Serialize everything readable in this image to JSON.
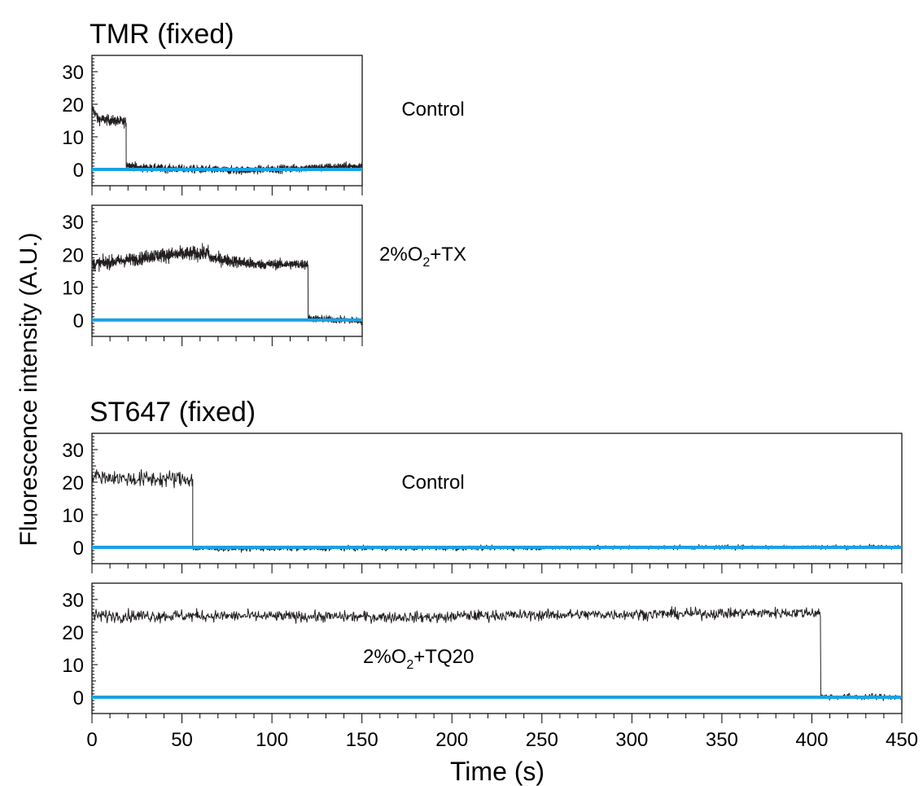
{
  "colors": {
    "trace": "#231f20",
    "baseline": "#1ba1e2",
    "axis": "#000000"
  },
  "figure": {
    "ylabel": "Fluorescence intensity (A.U.)",
    "xlabel": "Time (s)"
  },
  "chart_data": [
    {
      "type": "line",
      "group_title": "TMR (fixed)",
      "annotation": "Control",
      "xlim": [
        0,
        150
      ],
      "ylim": [
        -5,
        35
      ],
      "yticks": [
        0,
        10,
        20,
        30
      ],
      "series": [
        {
          "kind": "trace",
          "segments": [
            {
              "x_start": 0,
              "x_end": 3,
              "y_start": 19,
              "y_end": 16,
              "noise": 1.2
            },
            {
              "x_start": 3,
              "x_end": 19,
              "y_start": 15.5,
              "y_end": 14.5,
              "noise": 1.3
            },
            {
              "x_start": 19,
              "x_end": 25,
              "y_start": 1.5,
              "y_end": 0.8,
              "noise": 1.0
            },
            {
              "x_start": 25,
              "x_end": 80,
              "y_start": 0.5,
              "y_end": -0.3,
              "noise": 1.0
            },
            {
              "x_start": 80,
              "x_end": 150,
              "y_start": -0.3,
              "y_end": 1.0,
              "noise": 1.0
            }
          ]
        },
        {
          "kind": "baseline",
          "y": 0
        }
      ]
    },
    {
      "type": "line",
      "annotation": "2%O2+TX",
      "annotation_parts": [
        "2%O",
        "2",
        "+TX"
      ],
      "xlim": [
        0,
        150
      ],
      "ylim": [
        -5,
        35
      ],
      "yticks": [
        0,
        10,
        20,
        30
      ],
      "series": [
        {
          "kind": "trace",
          "segments": [
            {
              "x_start": 0,
              "x_end": 30,
              "y_start": 17,
              "y_end": 19,
              "noise": 1.6
            },
            {
              "x_start": 30,
              "x_end": 65,
              "y_start": 19.5,
              "y_end": 20.5,
              "noise": 1.8
            },
            {
              "x_start": 65,
              "x_end": 90,
              "y_start": 19,
              "y_end": 17,
              "noise": 1.5
            },
            {
              "x_start": 90,
              "x_end": 120,
              "y_start": 17,
              "y_end": 17,
              "noise": 1.2
            },
            {
              "x_start": 120,
              "x_end": 150,
              "y_start": 0.5,
              "y_end": -0.3,
              "noise": 0.9
            }
          ]
        },
        {
          "kind": "baseline",
          "y": 0
        }
      ]
    },
    {
      "type": "line",
      "group_title": "ST647 (fixed)",
      "annotation": "Control",
      "xlim": [
        0,
        450
      ],
      "ylim": [
        -5,
        35
      ],
      "yticks": [
        0,
        10,
        20,
        30
      ],
      "series": [
        {
          "kind": "trace",
          "segments": [
            {
              "x_start": 0,
              "x_end": 20,
              "y_start": 22,
              "y_end": 21,
              "noise": 1.8
            },
            {
              "x_start": 20,
              "x_end": 56,
              "y_start": 21,
              "y_end": 21,
              "noise": 2.2
            },
            {
              "x_start": 56,
              "x_end": 450,
              "y_start": -0.5,
              "y_end": 0.2,
              "noise": 0.6
            }
          ]
        },
        {
          "kind": "baseline",
          "y": 0
        }
      ]
    },
    {
      "type": "line",
      "annotation": "2%O2+TQ20",
      "annotation_parts": [
        "2%O",
        "2",
        "+TQ20"
      ],
      "xlabel": "Time (s)",
      "xlim": [
        0,
        450
      ],
      "ylim": [
        -5,
        35
      ],
      "yticks": [
        0,
        10,
        20,
        30
      ],
      "xticks": [
        0,
        50,
        100,
        150,
        200,
        250,
        300,
        350,
        400,
        450
      ],
      "series": [
        {
          "kind": "trace",
          "segments": [
            {
              "x_start": 0,
              "x_end": 60,
              "y_start": 25,
              "y_end": 25,
              "noise": 1.6
            },
            {
              "x_start": 60,
              "x_end": 200,
              "y_start": 25,
              "y_end": 24.5,
              "noise": 1.4
            },
            {
              "x_start": 200,
              "x_end": 405,
              "y_start": 25,
              "y_end": 26,
              "noise": 1.4
            },
            {
              "x_start": 405,
              "x_end": 450,
              "y_start": 0.3,
              "y_end": 0,
              "noise": 0.8
            }
          ]
        },
        {
          "kind": "baseline",
          "y": 0
        }
      ]
    }
  ]
}
